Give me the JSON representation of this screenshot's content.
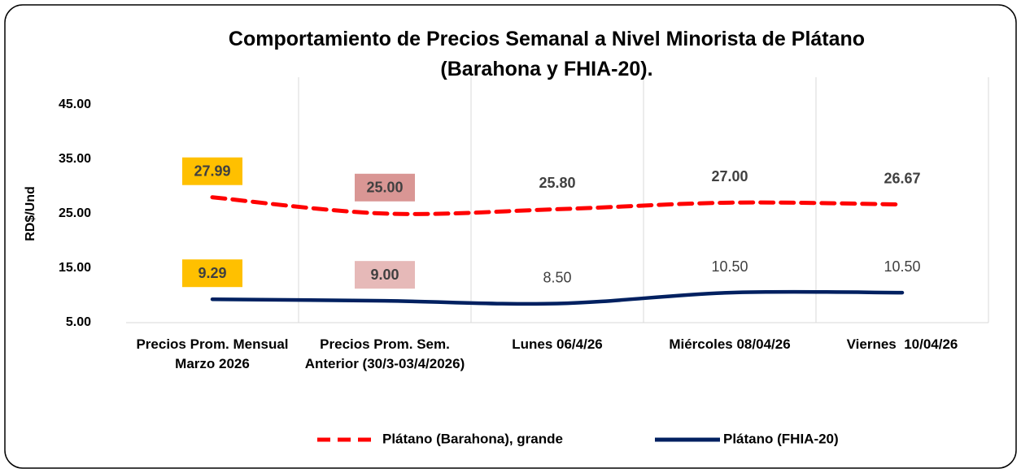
{
  "chart_data": {
    "type": "line",
    "title": "Comportamiento de Precios Semanal a Nivel Minorista de Plátano (Barahona y FHIA-20).",
    "ylabel": "RD$/Und",
    "categories": [
      "Precios Prom. Mensual Marzo 2026",
      "Precios Prom. Sem. Anterior (30/3-03/4/2026)",
      "Lunes 06/4/26",
      "Miércoles 08/04/26",
      "Viernes  10/04/26"
    ],
    "series": [
      {
        "name": "Plátano (Barahona), grande",
        "color": "#ff0000",
        "dash": true,
        "values": [
          27.99,
          25.0,
          25.8,
          27.0,
          26.67
        ],
        "value_labels": [
          "27.99",
          "25.00",
          "25.80",
          "27.00",
          "26.67"
        ],
        "label_backgrounds": [
          "#ffc000",
          "#d99694",
          null,
          null,
          null
        ]
      },
      {
        "name": "Plátano (FHIA-20)",
        "color": "#002060",
        "dash": false,
        "values": [
          9.29,
          9.0,
          8.5,
          10.5,
          10.5
        ],
        "value_labels": [
          "9.29",
          "9.00",
          "8.50",
          "10.50",
          "10.50"
        ],
        "label_backgrounds": [
          "#ffc000",
          "#e6b9b8",
          null,
          null,
          null
        ]
      }
    ],
    "ylim": [
      5,
      50
    ],
    "yticks": [
      {
        "value": 5,
        "label": "5.00"
      },
      {
        "value": 15,
        "label": "15.00"
      },
      {
        "value": 25,
        "label": "25.00"
      },
      {
        "value": 35,
        "label": "35.00"
      },
      {
        "value": 45,
        "label": "45.00"
      }
    ],
    "grid": "x",
    "legend": "bottom"
  }
}
